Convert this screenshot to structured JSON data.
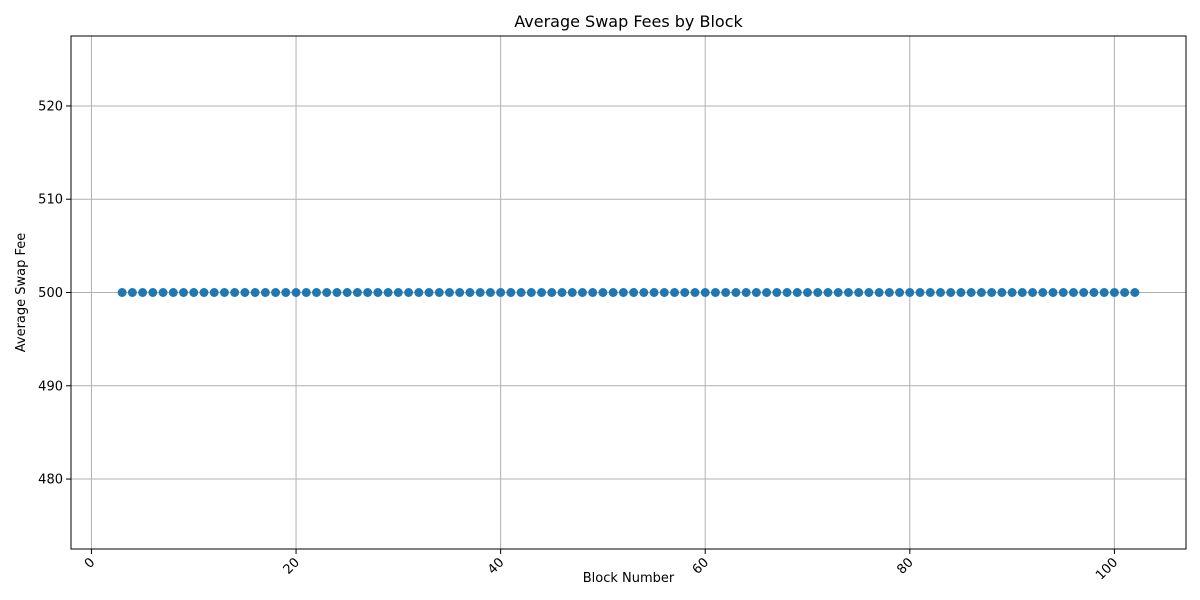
{
  "chart_data": {
    "type": "scatter",
    "title": "Average Swap Fees by Block",
    "xlabel": "Block Number",
    "ylabel": "Average Swap Fee",
    "xlim": [
      -2,
      107
    ],
    "ylim": [
      472.5,
      527.5
    ],
    "xticks": [
      0,
      20,
      40,
      60,
      80,
      100
    ],
    "yticks": [
      480,
      490,
      500,
      510,
      520
    ],
    "x_tick_rotation_deg": 45,
    "grid": true,
    "marker": "circle",
    "color": "#1f77b4",
    "series": [
      {
        "x_start": 3,
        "x_end": 102,
        "x_step": 1,
        "y": 500
      }
    ]
  }
}
